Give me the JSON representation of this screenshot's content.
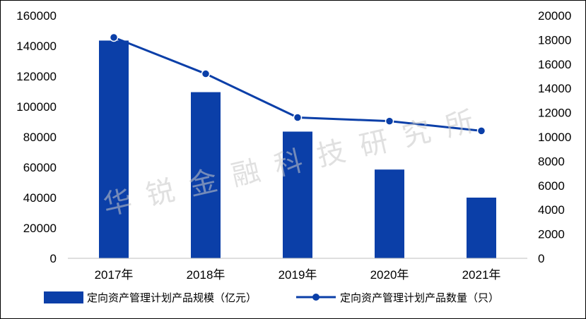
{
  "chart_data": {
    "type": "bar",
    "categories": [
      "2017年",
      "2018年",
      "2019年",
      "2020年",
      "2021年"
    ],
    "series": [
      {
        "name": "定向资产管理计划产品规模（亿元）",
        "type": "bar",
        "axis": "left",
        "values": [
          143500,
          109500,
          83500,
          58500,
          40000
        ],
        "color": "#0b3fa8"
      },
      {
        "name": "定向资产管理计划产品数量（只）",
        "type": "line",
        "axis": "right",
        "values": [
          18200,
          15200,
          11600,
          11300,
          10500
        ],
        "color": "#0b3fa8"
      }
    ],
    "y_left": {
      "min": 0,
      "max": 160000,
      "step": 20000
    },
    "y_right": {
      "min": 0,
      "max": 20000,
      "step": 2000
    },
    "grid": false,
    "legend_position": "bottom"
  },
  "watermark": "华锐金融科技研究所"
}
